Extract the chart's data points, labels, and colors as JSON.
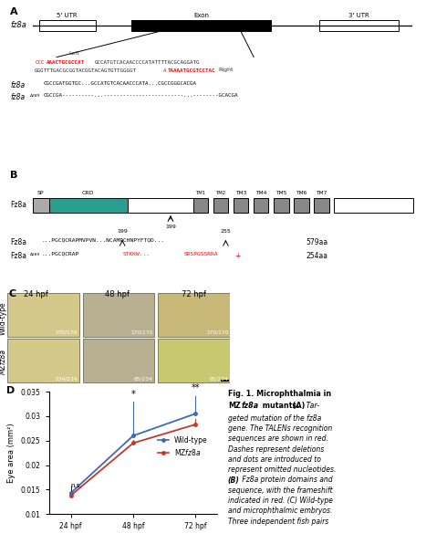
{
  "panel_D": {
    "x_labels": [
      "24 hpf",
      "48 hpf",
      "72 hpf"
    ],
    "x_values": [
      0,
      1,
      2
    ],
    "wt_values": [
      0.0143,
      0.026,
      0.0305
    ],
    "mut_values": [
      0.0138,
      0.0245,
      0.0283
    ],
    "wt_err_lo": [
      0.0005,
      0.0035,
      0.002
    ],
    "wt_err_hi": [
      0.0005,
      0.006,
      0.002
    ],
    "mut_err_lo": [
      0.0005,
      0.002,
      0.002
    ],
    "mut_err_hi": [
      0.0005,
      0.002,
      0.002
    ],
    "wt_label": "Wild-type",
    "mut_label": "MZfz8a",
    "ylabel": "Eye area (mm²)",
    "ylim": [
      0.01,
      0.035
    ],
    "yticks": [
      0.01,
      0.015,
      0.02,
      0.025,
      0.03,
      0.035
    ],
    "wt_color": "#4169b0",
    "mut_color": "#c0392b",
    "bg_color": "#ffffff"
  }
}
